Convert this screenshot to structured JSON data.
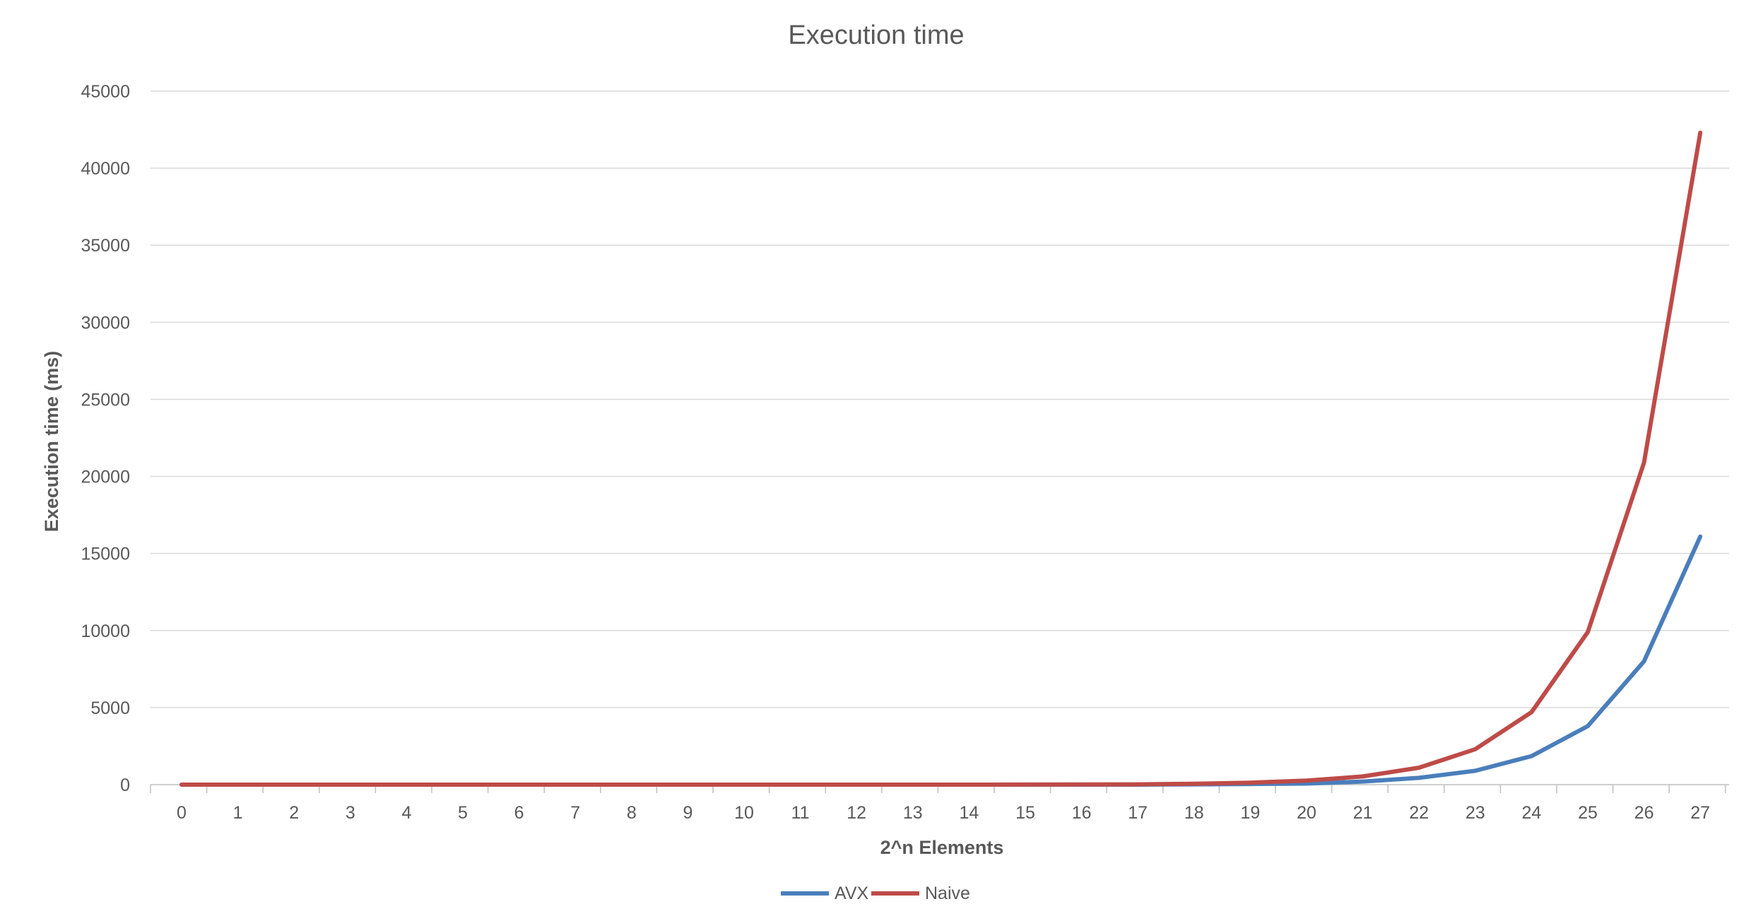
{
  "chart_data": {
    "type": "line",
    "title": "Execution time",
    "xlabel": "2^n Elements",
    "ylabel": "Execution time (ms)",
    "x": [
      "0",
      "1",
      "2",
      "3",
      "4",
      "5",
      "6",
      "7",
      "8",
      "9",
      "10",
      "11",
      "12",
      "13",
      "14",
      "15",
      "16",
      "17",
      "18",
      "19",
      "20",
      "21",
      "22",
      "23",
      "24",
      "25",
      "26",
      "27"
    ],
    "ylim": [
      0,
      45000
    ],
    "yticks": [
      0,
      5000,
      10000,
      15000,
      20000,
      25000,
      30000,
      35000,
      40000,
      45000
    ],
    "grid": true,
    "legend_position": "bottom",
    "series": [
      {
        "name": "AVX",
        "color": "#4a7ebb",
        "values": [
          0,
          0,
          0,
          0,
          0,
          0,
          0,
          0,
          0,
          0,
          0,
          0,
          0,
          0,
          0,
          0,
          0,
          0,
          20,
          40,
          70,
          200,
          440,
          900,
          1850,
          3800,
          8000,
          16100
        ]
      },
      {
        "name": "Naive",
        "color": "#be4b48",
        "values": [
          0,
          0,
          0,
          0,
          0,
          0,
          0,
          0,
          0,
          0,
          0,
          0,
          0,
          0,
          0,
          5,
          10,
          20,
          60,
          130,
          260,
          530,
          1100,
          2300,
          4700,
          9900,
          20900,
          42300
        ]
      }
    ]
  }
}
